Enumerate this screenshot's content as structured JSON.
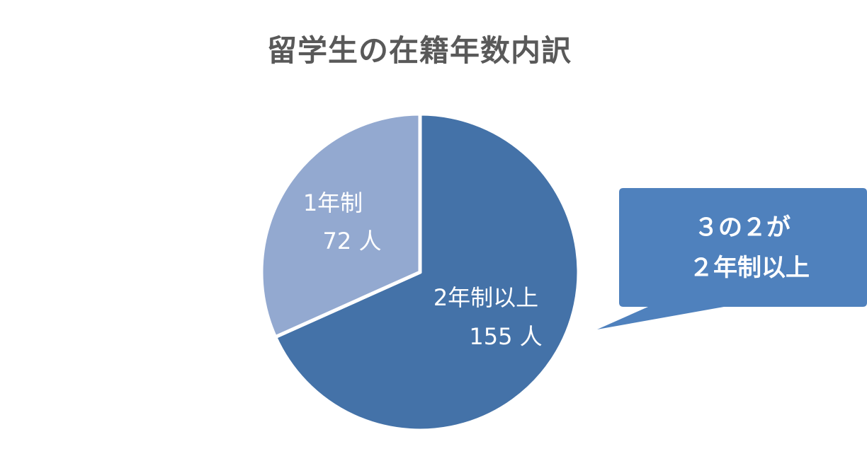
{
  "chart_data": {
    "type": "pie",
    "title": "留学生の在籍年数内訳",
    "slices": [
      {
        "name": "2年制以上",
        "value": 155,
        "value_label": "155 人",
        "color": "#4472a8"
      },
      {
        "name": "1年制",
        "value": 72,
        "value_label": "72 人",
        "color": "#93a9d0"
      }
    ],
    "start_angle_deg": 0,
    "direction": "clockwise",
    "legend": "none",
    "annotation": {
      "lines": [
        "３の２が",
        "２年制以上"
      ],
      "color": "#4f81bd"
    }
  }
}
